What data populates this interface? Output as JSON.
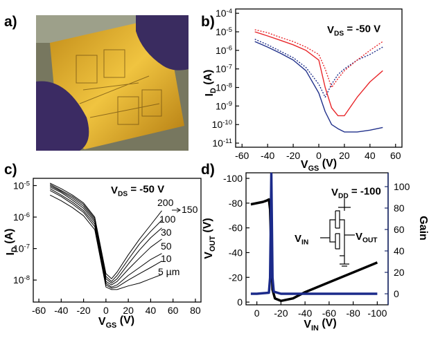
{
  "photo_panel": {
    "label": "a)"
  },
  "chart_data": [
    {
      "type": "line",
      "panel": "b)",
      "y_scale": "log",
      "xlabel": {
        "text": "V",
        "sub": "GS",
        "tail": " (V)"
      },
      "ylabel": {
        "text": "I",
        "sub": "D",
        "tail": " (A)"
      },
      "annotations": [
        {
          "text": "V",
          "sub": "DS",
          "tail": " = -50 V"
        }
      ],
      "xlim": [
        -65,
        65
      ],
      "xticks": [
        -60,
        -40,
        -20,
        0,
        20,
        40,
        60
      ],
      "ylim": [
        6e-12,
        0.00017
      ],
      "yticks": [
        {
          "value": 1e-11,
          "label": "10",
          "exp": "-11"
        },
        {
          "value": 1e-10,
          "label": "10",
          "exp": "-10"
        },
        {
          "value": 1e-09,
          "label": "10",
          "exp": "-9"
        },
        {
          "value": 1e-08,
          "label": "10",
          "exp": "-8"
        },
        {
          "value": 1e-07,
          "label": "10",
          "exp": "-7"
        },
        {
          "value": 1e-06,
          "label": "10",
          "exp": "-6"
        },
        {
          "value": 1e-05,
          "label": "10",
          "exp": "-5"
        },
        {
          "value": 0.0001,
          "label": "10",
          "exp": "-4"
        }
      ],
      "x": [
        -50,
        -40,
        -30,
        -20,
        -10,
        0,
        5,
        10,
        15,
        20,
        30,
        40,
        50
      ],
      "series": [
        {
          "color": "#1f2f8a",
          "line_style": "solid",
          "values": [
            3e-06,
            1.5e-06,
            7e-07,
            3e-07,
            8e-08,
            5e-09,
            5e-10,
            1e-10,
            6e-11,
            4e-11,
            4e-11,
            5e-11,
            7e-11
          ]
        },
        {
          "color": "#1f2f8a",
          "line_style": "dotted",
          "values": [
            4e-06,
            2e-06,
            9e-07,
            4e-07,
            1.2e-07,
            1.5e-08,
            3e-09,
            1.5e-08,
            5e-08,
            1e-07,
            3e-07,
            6e-07,
            1.5e-06
          ]
        },
        {
          "color": "#e8262a",
          "line_style": "solid",
          "values": [
            1e-05,
            6e-06,
            3.5e-06,
            2e-06,
            1e-06,
            3e-07,
            1e-08,
            8e-10,
            3e-10,
            3e-10,
            3e-09,
            2e-08,
            8e-08
          ]
        },
        {
          "color": "#e8262a",
          "line_style": "dotted",
          "values": [
            1.3e-05,
            9e-06,
            5e-06,
            3e-06,
            1.5e-06,
            6e-07,
            1e-07,
            1e-08,
            3e-08,
            8e-08,
            3e-07,
            1e-06,
            3e-06
          ]
        }
      ]
    },
    {
      "type": "line",
      "panel": "c)",
      "y_scale": "log",
      "xlabel": {
        "text": "V",
        "sub": "GS",
        "tail": " (V)"
      },
      "ylabel": {
        "text": "I",
        "sub": "D",
        "tail": " (A)"
      },
      "annotations": [
        {
          "text": "V",
          "sub": "DS",
          "tail": " = -50 V"
        }
      ],
      "xlim": [
        -65,
        85
      ],
      "xticks": [
        -60,
        -40,
        -20,
        0,
        20,
        40,
        60,
        80
      ],
      "ylim": [
        2e-09,
        1.7e-05
      ],
      "yticks": [
        {
          "value": 1e-08,
          "label": "10",
          "exp": "-8"
        },
        {
          "value": 1e-07,
          "label": "10",
          "exp": "-7"
        },
        {
          "value": 1e-06,
          "label": "10",
          "exp": "-6"
        },
        {
          "value": 1e-05,
          "label": "10",
          "exp": "-5"
        }
      ],
      "x": [
        -50,
        -40,
        -30,
        -20,
        -10,
        0,
        5,
        10,
        20,
        30,
        40,
        50
      ],
      "series": [
        {
          "name": "200",
          "color": "#000000",
          "line_style": "solid",
          "values": [
            1.2e-05,
            8e-06,
            5e-06,
            2.8e-06,
            1e-06,
            1.6e-08,
            1.1e-08,
            1.8e-08,
            6.3e-08,
            2e-07,
            5.6e-07,
            1.6e-06
          ]
        },
        {
          "name": "150",
          "color": "#000000",
          "line_style": "solid",
          "values": [
            1.1e-05,
            7e-06,
            4.5e-06,
            2.5e-06,
            9e-07,
            1.3e-08,
            9e-09,
            1.4e-08,
            4.5e-08,
            1.4e-07,
            3.5e-07,
            8e-07
          ]
        },
        {
          "name": "100",
          "color": "#000000",
          "line_style": "solid",
          "values": [
            1e-05,
            6.5e-06,
            4e-06,
            2.2e-06,
            8e-07,
            1.1e-08,
            8e-09,
            1.1e-08,
            3.2e-08,
            9e-08,
            2.2e-07,
            4.5e-07
          ]
        },
        {
          "name": "30",
          "color": "#000000",
          "line_style": "solid",
          "values": [
            9e-06,
            6e-06,
            3.5e-06,
            1.9e-06,
            7e-07,
            9e-09,
            7e-09,
            9e-09,
            2.2e-08,
            5e-08,
            1.1e-07,
            2e-07
          ]
        },
        {
          "name": "50",
          "color": "#000000",
          "line_style": "solid",
          "values": [
            8e-06,
            5e-06,
            3e-06,
            1.6e-06,
            6e-07,
            8e-09,
            6e-09,
            7e-09,
            1.4e-08,
            2.5e-08,
            4.5e-08,
            7e-08
          ]
        },
        {
          "name": "10",
          "color": "#000000",
          "line_style": "solid",
          "values": [
            7e-06,
            4.5e-06,
            2.6e-06,
            1.4e-06,
            5e-07,
            7e-09,
            5.5e-09,
            6e-09,
            1e-08,
            1.6e-08,
            2.5e-08,
            4e-08
          ]
        },
        {
          "name": "5 µm",
          "color": "#000000",
          "line_style": "solid",
          "values": [
            5e-06,
            3.3e-06,
            2e-06,
            1.1e-06,
            4e-07,
            6e-09,
            5e-09,
            5e-09,
            6.5e-09,
            8e-09,
            1.1e-08,
            1.5e-08
          ]
        }
      ]
    },
    {
      "type": "line",
      "panel": "d)",
      "y_scale": "linear",
      "xlabel": {
        "text": "V",
        "sub": "IN",
        "tail": " (V)"
      },
      "ylabel": {
        "text": "V",
        "sub": "OUT",
        "tail": " (V)"
      },
      "y2label": "Gain",
      "y2color": "#1b2a6b",
      "annotations": [
        {
          "text": "V",
          "sub": "DD",
          "tail": " = -100"
        },
        {
          "text": "V",
          "sub": "IN"
        },
        {
          "text": "V",
          "sub": "OUT"
        }
      ],
      "xlim": [
        9,
        -109
      ],
      "xticks": [
        0,
        -20,
        -40,
        -60,
        -80,
        -100
      ],
      "ylim": [
        2.2,
        -104.5
      ],
      "yticks": [
        0,
        -20,
        -40,
        -60,
        -80,
        -100
      ],
      "y2lim": [
        -10.3,
        112.9
      ],
      "y2ticks": [
        0,
        20,
        40,
        60,
        80,
        100
      ],
      "series": [
        {
          "color": "#000000",
          "line_style": "solid",
          "x": [
            5,
            0,
            -5,
            -8,
            -10,
            -11,
            -12,
            -13,
            -15,
            -20,
            -30,
            -40,
            -60,
            -80,
            -100
          ],
          "values": [
            -79,
            -80,
            -81,
            -82,
            -83,
            -75,
            -40,
            -10,
            -3,
            -1,
            -3,
            -8,
            -16,
            -24,
            -32
          ]
        },
        {
          "color": "#1b2a8a",
          "line_style": "solid",
          "axis": "y2",
          "x": [
            5,
            0,
            -10,
            -11,
            -11.5,
            -12,
            -12.5,
            -13,
            -14,
            -20,
            -40,
            -60,
            -80,
            -100
          ],
          "values": [
            0,
            0,
            1,
            15,
            60,
            112,
            60,
            15,
            2,
            0,
            0,
            0,
            0,
            0
          ]
        }
      ]
    }
  ]
}
